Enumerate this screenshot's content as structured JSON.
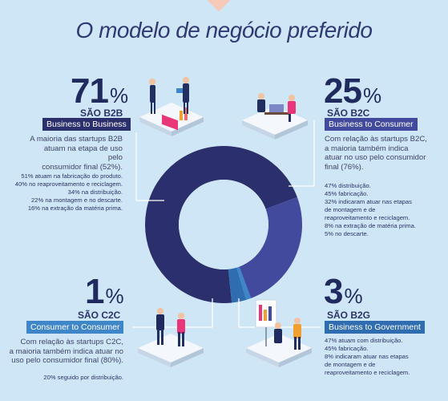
{
  "title": "O modelo de negócio preferido",
  "chart_data": {
    "type": "pie",
    "categories": [
      "B2B",
      "B2C",
      "C2C",
      "B2G"
    ],
    "values": [
      71,
      25,
      1,
      3
    ],
    "colors": [
      "#2b2f6b",
      "#414a9c",
      "#3f86c9",
      "#2f6cb0"
    ]
  },
  "sections": {
    "b2b": {
      "percent": "71",
      "symbol": "%",
      "sao": "SÃO B2B",
      "badge": "Business to Business",
      "badge_color": "#2b2f6b",
      "description": [
        "A maioria das startups B2B",
        "atuam na etapa de uso pelo",
        "consumidor final (52%)."
      ],
      "details": [
        "51% atuam na fabricação do produto.",
        "40% no reaproveitamento e reciclagem.",
        "34% na distribuição.",
        "22% na montagem e no descarte.",
        "16% na extração da matéria prima."
      ]
    },
    "b2c": {
      "percent": "25",
      "symbol": "%",
      "sao": "SÃO B2C",
      "badge": "Business to Consumer",
      "badge_color": "#414a9c",
      "description": [
        "Com relação às startups B2C,",
        "a maioria também indica",
        "atuar no uso pelo consumidor",
        "final (76%)."
      ],
      "details": [
        "47% distribuição.",
        "45% fabricação.",
        "32% indicaram atuar nas etapas",
        "de montagem e de",
        "reaproveitamento e reciclagem.",
        "8% na extração de matéria prima.",
        "5% no descarte."
      ]
    },
    "c2c": {
      "percent": "1",
      "symbol": "%",
      "sao": "SÃO C2C",
      "badge": "Consumer to Consumer",
      "badge_color": "#3f86c9",
      "description": [
        "Com relação às startups C2C,",
        "a maioria também indica atuar no",
        "uso pelo consumidor final (80%)."
      ],
      "details": [
        "20% seguido por distribuição."
      ]
    },
    "b2g": {
      "percent": "3",
      "symbol": "%",
      "sao": "SÃO B2G",
      "badge": "Business to Government",
      "badge_color": "#2f6cb0",
      "details": [
        "47% atuam com distribuição.",
        "45% fabricação.",
        "8% indicaram atuar nas etapas",
        "de montagem e de",
        "reaproveitamento e reciclagem."
      ]
    }
  }
}
